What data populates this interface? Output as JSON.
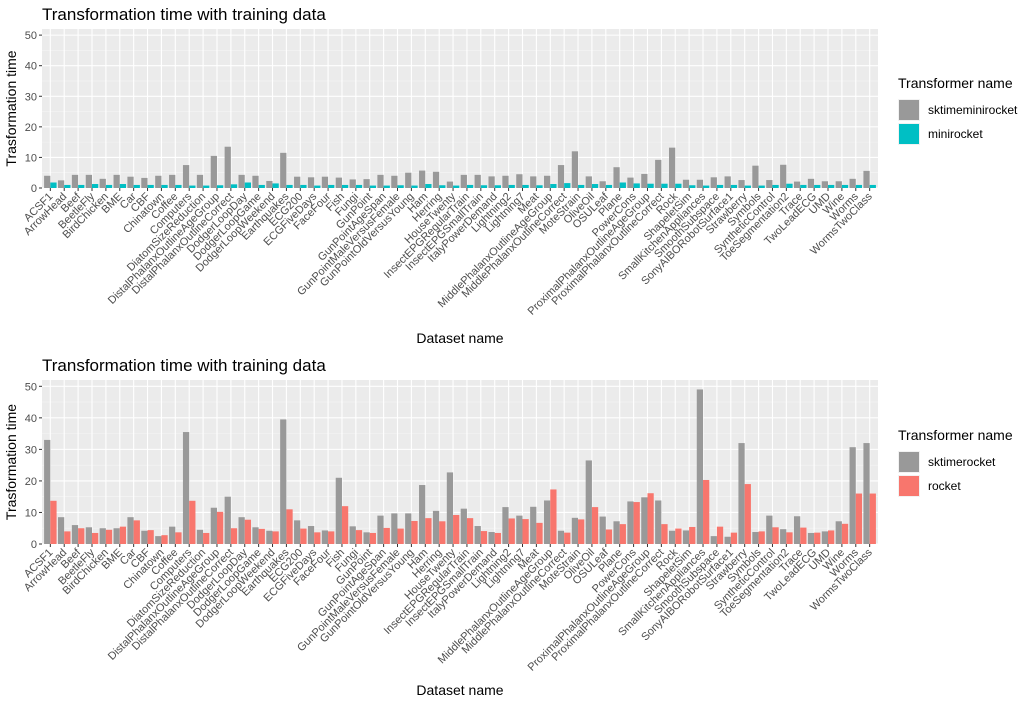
{
  "chart_data": [
    {
      "type": "bar",
      "title": "Transformation time with training data",
      "xlabel": "Dataset name",
      "ylabel": "Trasformation time",
      "ylim": [
        0,
        52
      ],
      "yticks": [
        0,
        10,
        20,
        30,
        40,
        50
      ],
      "grid": true,
      "legend": {
        "title": "Transformer name",
        "position": "right"
      },
      "categories": [
        "ACSF1",
        "ArrowHead",
        "Beef",
        "BeetleFly",
        "BirdChicken",
        "BME",
        "Car",
        "CBF",
        "Chinatown",
        "Coffee",
        "Computers",
        "DiatomSizeReduction",
        "DistalPhalanxOutlineAgeGroup",
        "DistalPhalanxOutlineCorrect",
        "DodgerLoopDay",
        "DodgerLoopGame",
        "DodgerLoopWeekend",
        "Earthquakes",
        "ECG200",
        "ECGFiveDays",
        "FaceFour",
        "Fish",
        "Fungi",
        "GunPoint",
        "GunPointAgeSpan",
        "GunPointMaleVersusFemale",
        "GunPointOldVersusYoung",
        "Ham",
        "Herring",
        "HouseTwenty",
        "InsectEPGRegularTrain",
        "InsectEPGSmallTrain",
        "ItalyPowerDemand",
        "Lightning2",
        "Lightning7",
        "Meat",
        "MiddlePhalanxOutlineAgeGroup",
        "MiddlePhalanxOutlineCorrect",
        "MoteStrain",
        "OliveOil",
        "OSULeaf",
        "Plane",
        "PowerCons",
        "ProximalPhalanxOutlineAgeGroup",
        "ProximalPhalanxOutlineCorrect",
        "Rock",
        "ShapeletSim",
        "SmallKitchenAppliances",
        "SmoothSubspace",
        "SonyAIBORobotSurface1",
        "Strawberry",
        "Symbols",
        "SyntheticControl",
        "ToeSegmentation2",
        "Trace",
        "TwoLeadECG",
        "UMD",
        "Wine",
        "Worms",
        "WormsTwoClass"
      ],
      "series": [
        {
          "name": "sktimeminirocket",
          "color": "#999999",
          "values": [
            4,
            2.5,
            4.3,
            4.3,
            3,
            4.3,
            3.7,
            3.3,
            4,
            4.3,
            7.5,
            4.3,
            10.5,
            13.5,
            4.3,
            4,
            2.3,
            11.5,
            3.7,
            3.5,
            3.7,
            3.4,
            2.8,
            2.9,
            4.3,
            4,
            5,
            5.7,
            5.3,
            2.1,
            4.3,
            4.3,
            3.8,
            4,
            4.5,
            3.8,
            4,
            7.5,
            12,
            3.8,
            2.2,
            6.8,
            3.4,
            4.6,
            9.2,
            13.2,
            2.7,
            2.7,
            3.5,
            3.8,
            2.6,
            7.3,
            2.6,
            7.6,
            2.1,
            3,
            2.2,
            2.2,
            3,
            5.6
          ]
        },
        {
          "name": "minirocket",
          "color": "#00bfc4",
          "values": [
            1.8,
            1,
            1,
            1.3,
            1,
            1.3,
            1,
            1,
            1,
            1,
            0.8,
            0.8,
            0.9,
            1.2,
            1.8,
            1,
            1.5,
            1,
            1,
            0.8,
            1,
            1,
            1,
            0.8,
            0.8,
            0.9,
            0.8,
            1.3,
            0.9,
            0.8,
            1,
            0.9,
            0.9,
            1,
            1,
            0.9,
            1.3,
            1.6,
            1,
            1.3,
            1,
            1.8,
            1.5,
            1.4,
            1.4,
            1.4,
            0.9,
            0.8,
            1,
            1,
            0.8,
            0.8,
            1,
            1.4,
            1,
            1,
            1,
            1,
            1,
            1
          ]
        }
      ]
    },
    {
      "type": "bar",
      "title": "Transformation time with training data",
      "xlabel": "Dataset name",
      "ylabel": "Trasformation time",
      "ylim": [
        0,
        52
      ],
      "yticks": [
        0,
        10,
        20,
        30,
        40,
        50
      ],
      "grid": true,
      "legend": {
        "title": "Transformer name",
        "position": "right"
      },
      "categories": [
        "ACSF1",
        "ArrowHead",
        "Beef",
        "BeetleFly",
        "BirdChicken",
        "BME",
        "Car",
        "CBF",
        "Chinatown",
        "Coffee",
        "Computers",
        "DiatomSizeReduction",
        "DistalPhalanxOutlineAgeGroup",
        "DistalPhalanxOutlineCorrect",
        "DodgerLoopDay",
        "DodgerLoopGame",
        "DodgerLoopWeekend",
        "Earthquakes",
        "ECG200",
        "ECGFiveDays",
        "FaceFour",
        "Fish",
        "Fungi",
        "GunPoint",
        "GunPointAgeSpan",
        "GunPointMaleVersusFemale",
        "GunPointOldVersusYoung",
        "Ham",
        "Herring",
        "HouseTwenty",
        "InsectEPGRegularTrain",
        "InsectEPGSmallTrain",
        "ItalyPowerDemand",
        "Lightning2",
        "Lightning7",
        "Meat",
        "MiddlePhalanxOutlineAgeGroup",
        "MiddlePhalanxOutlineCorrect",
        "MoteStrain",
        "OliveOil",
        "OSULeaf",
        "Plane",
        "PowerCons",
        "ProximalPhalanxOutlineAgeGroup",
        "ProximalPhalanxOutlineCorrect",
        "Rock",
        "ShapeletSim",
        "SmallKitchenAppliances",
        "SmoothSubspace",
        "SonyAIBORobotSurface1",
        "Strawberry",
        "Symbols",
        "SyntheticControl",
        "ToeSegmentation2",
        "Trace",
        "TwoLeadECG",
        "UMD",
        "Wine",
        "Worms",
        "WormsTwoClass"
      ],
      "series": [
        {
          "name": "sktimerocket",
          "color": "#999999",
          "values": [
            33,
            8.5,
            6,
            5.3,
            5,
            5,
            8.5,
            4.2,
            2.5,
            5.5,
            35.5,
            4.5,
            11.5,
            15,
            8.5,
            5.3,
            4.2,
            39.5,
            7.5,
            5.7,
            4.3,
            21,
            5.6,
            3.7,
            9,
            9.7,
            9.7,
            18.7,
            10.5,
            22.7,
            11.2,
            5.7,
            3.8,
            11.7,
            9,
            11.8,
            13.8,
            4.2,
            8.3,
            26.5,
            8.7,
            7.2,
            13.5,
            14.8,
            13.8,
            4.2,
            4.3,
            49,
            2.5,
            2.3,
            32,
            3.8,
            9,
            4.7,
            8.8,
            3.5,
            4,
            7.2,
            30.7,
            32
          ]
        },
        {
          "name": "rocket",
          "color": "#f8766d",
          "values": [
            13.7,
            4,
            5,
            3.5,
            4.5,
            5.5,
            7.5,
            4.4,
            2.8,
            3.7,
            13.7,
            3.5,
            10.2,
            5,
            7.7,
            4.8,
            4,
            11,
            4.9,
            3.7,
            4,
            12,
            4.4,
            3.5,
            5.1,
            4.9,
            7.3,
            8.2,
            7.2,
            9.2,
            8.2,
            4.1,
            3.5,
            8.1,
            7.9,
            6.7,
            17.3,
            3.6,
            7.8,
            11.7,
            4.6,
            6.3,
            13.3,
            16.1,
            6.3,
            4.9,
            5.4,
            20.3,
            5.5,
            3.6,
            19,
            4,
            5.3,
            3.7,
            5.2,
            3.6,
            4.3,
            6.4,
            16,
            16
          ]
        }
      ]
    }
  ]
}
